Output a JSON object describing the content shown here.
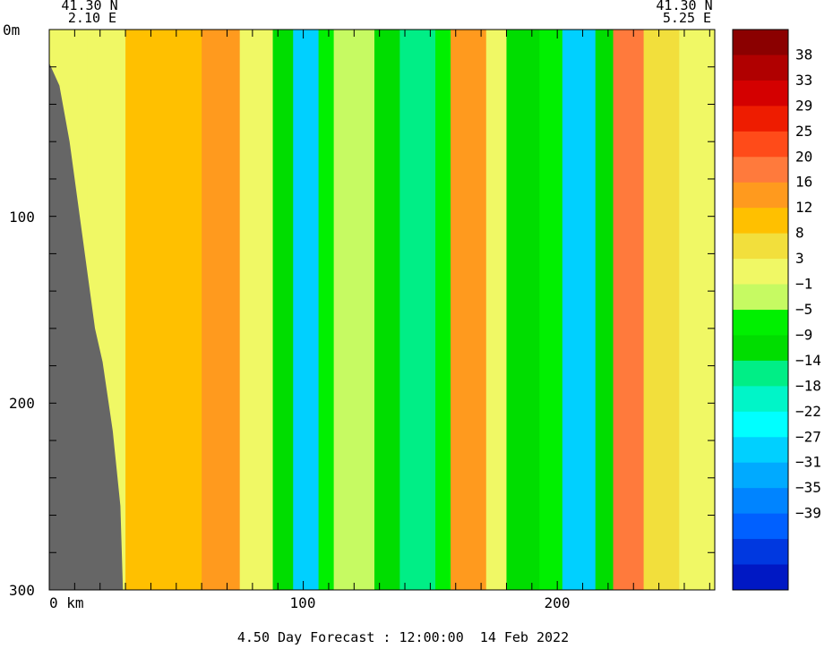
{
  "chart_data": {
    "type": "heatmap",
    "left_endpoint": {
      "lat": "41.30 N",
      "lon": "2.10 E"
    },
    "right_endpoint": {
      "lat": "41.30 N",
      "lon": "5.25 E"
    },
    "x_axis": {
      "ticks": [
        0,
        100,
        200
      ],
      "tick_labels": [
        "0 km",
        "100",
        "200"
      ],
      "range": [
        0,
        262
      ]
    },
    "y_axis": {
      "ticks": [
        0,
        100,
        200,
        300
      ],
      "tick_labels": [
        "0m",
        "100",
        "200",
        "300"
      ],
      "range": [
        0,
        300
      ],
      "inverted": true
    },
    "colorbar": {
      "labels": [
        "38",
        "33",
        "29",
        "25",
        "20",
        "16",
        "12",
        "8",
        "3",
        "-1",
        "-5",
        "-9",
        "-14",
        "-18",
        "-22",
        "-27",
        "-31",
        "-35",
        "-39"
      ],
      "colors": [
        "#8b0000",
        "#b00000",
        "#d40000",
        "#ee1c00",
        "#ff4b19",
        "#ff7a3c",
        "#ff9a1e",
        "#ffc000",
        "#f2df3c",
        "#f0f865",
        "#c6fa62",
        "#00f000",
        "#00dd00",
        "#00ee86",
        "#00f5c8",
        "#00ffff",
        "#00d0ff",
        "#00aaff",
        "#0084ff",
        "#0060ff",
        "#0038e0",
        "#0018c4"
      ]
    },
    "columns": [
      {
        "x0": 0,
        "x1": 15,
        "val": 3
      },
      {
        "x0": 15,
        "x1": 30,
        "val": 5
      },
      {
        "x0": 30,
        "x1": 60,
        "val": 12
      },
      {
        "x0": 60,
        "x1": 75,
        "val": 18
      },
      {
        "x0": 75,
        "x1": 88,
        "val": 7
      },
      {
        "x0": 88,
        "x1": 96,
        "val": -8
      },
      {
        "x0": 96,
        "x1": 106,
        "val": -24
      },
      {
        "x0": 106,
        "x1": 112,
        "val": -4
      },
      {
        "x0": 112,
        "x1": 128,
        "val": 1
      },
      {
        "x0": 128,
        "x1": 138,
        "val": -6
      },
      {
        "x0": 138,
        "x1": 152,
        "val": -12
      },
      {
        "x0": 152,
        "x1": 158,
        "val": -2
      },
      {
        "x0": 158,
        "x1": 172,
        "val": 16
      },
      {
        "x0": 172,
        "x1": 180,
        "val": 6
      },
      {
        "x0": 180,
        "x1": 193,
        "val": -6
      },
      {
        "x0": 193,
        "x1": 202,
        "val": -2
      },
      {
        "x0": 202,
        "x1": 215,
        "val": -26
      },
      {
        "x0": 215,
        "x1": 222,
        "val": -8
      },
      {
        "x0": 222,
        "x1": 234,
        "val": 20
      },
      {
        "x0": 234,
        "x1": 248,
        "val": 8
      },
      {
        "x0": 248,
        "x1": 262,
        "val": 4
      }
    ],
    "land_profile": [
      [
        0,
        18
      ],
      [
        4,
        30
      ],
      [
        8,
        60
      ],
      [
        12,
        100
      ],
      [
        15,
        130
      ],
      [
        18,
        160
      ],
      [
        21,
        178
      ],
      [
        25,
        215
      ],
      [
        28,
        255
      ],
      [
        29,
        300
      ]
    ]
  },
  "footer": {
    "forecast": "4.50 Day Forecast : 12:00:00  14 Feb 2022"
  }
}
